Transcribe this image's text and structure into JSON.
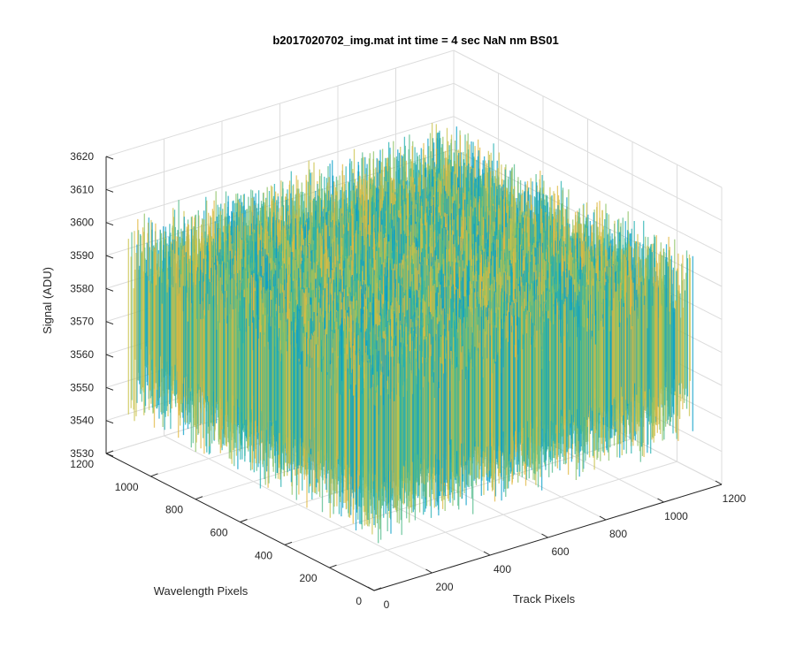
{
  "figure": {
    "title": "b2017020702_img.mat int time = 4 sec  NaN nm BS01"
  },
  "chart_data": {
    "type": "surface",
    "title": "b2017020702_img.mat int time = 4 sec  NaN nm BS01",
    "xlabel": "Track Pixels",
    "ylabel": "Wavelength Pixels",
    "zlabel": "Signal (ADU)",
    "xlim": [
      0,
      1200
    ],
    "ylim": [
      0,
      1200
    ],
    "zlim": [
      3530,
      3620
    ],
    "x_ticks": [
      "0",
      "200",
      "400",
      "600",
      "800",
      "1000",
      "1200"
    ],
    "y_ticks": [
      "0",
      "200",
      "400",
      "600",
      "800",
      "1000",
      "1200"
    ],
    "z_ticks": [
      "3530",
      "3540",
      "3550",
      "3560",
      "3570",
      "3580",
      "3590",
      "3600",
      "3610",
      "3620"
    ],
    "surface": {
      "x_extent": [
        0,
        1100
      ],
      "y_extent": [
        0,
        1100
      ],
      "mean_signal": 3575,
      "noise_range": [
        3545,
        3605
      ],
      "colormap": "parula",
      "colors": [
        "#0a9fc8",
        "#23b0b0",
        "#4fb98a",
        "#8cc263",
        "#c9c14a",
        "#e0b73f"
      ]
    },
    "grid": true
  }
}
